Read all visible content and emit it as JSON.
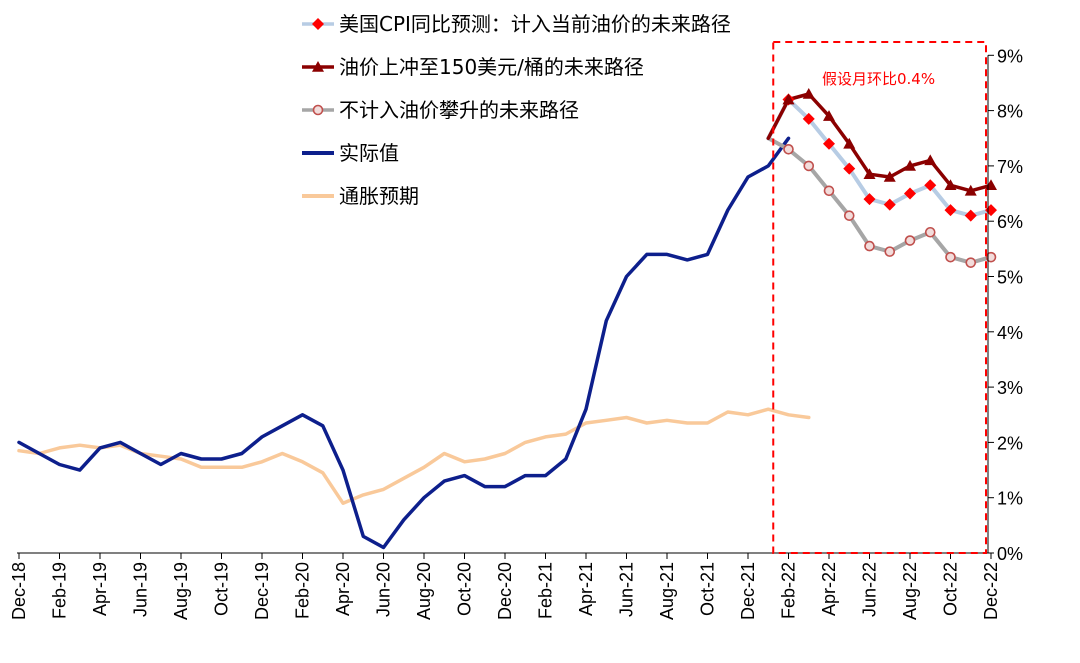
{
  "chart_data": {
    "type": "line",
    "y_axis": {
      "position": "right",
      "ylim": [
        0,
        9
      ],
      "tick_labels": [
        "0%",
        "1%",
        "2%",
        "3%",
        "4%",
        "5%",
        "6%",
        "7%",
        "8%",
        "9%"
      ]
    },
    "x_axis": {
      "months": [
        "Dec-18",
        "Jan-19",
        "Feb-19",
        "Mar-19",
        "Apr-19",
        "May-19",
        "Jun-19",
        "Jul-19",
        "Aug-19",
        "Sep-19",
        "Oct-19",
        "Nov-19",
        "Dec-19",
        "Jan-20",
        "Feb-20",
        "Mar-20",
        "Apr-20",
        "May-20",
        "Jun-20",
        "Jul-20",
        "Aug-20",
        "Sep-20",
        "Oct-20",
        "Nov-20",
        "Dec-20",
        "Jan-21",
        "Feb-21",
        "Mar-21",
        "Apr-21",
        "May-21",
        "Jun-21",
        "Jul-21",
        "Aug-21",
        "Sep-21",
        "Oct-21",
        "Nov-21",
        "Dec-21",
        "Jan-22",
        "Feb-22",
        "Mar-22",
        "Apr-22",
        "May-22",
        "Jun-22",
        "Jul-22",
        "Aug-22",
        "Sep-22",
        "Oct-22",
        "Nov-22",
        "Dec-22"
      ],
      "tick_labels": [
        "Dec-18",
        "Feb-19",
        "Apr-19",
        "Jun-19",
        "Aug-19",
        "Oct-19",
        "Dec-19",
        "Feb-20",
        "Apr-20",
        "Jun-20",
        "Aug-20",
        "Oct-20",
        "Dec-20",
        "Feb-21",
        "Apr-21",
        "Jun-21",
        "Aug-21",
        "Oct-21",
        "Dec-21",
        "Feb-22",
        "Apr-22",
        "Jun-22",
        "Aug-22",
        "Oct-22",
        "Dec-22"
      ]
    },
    "series": [
      {
        "name": "美国CPI同比预测：计入当前油价的未来路径",
        "color": "#b7cce4",
        "marker_color": "#ff0000",
        "marker": "diamond",
        "start_month": "Jan-22",
        "values": [
          7.5,
          8.2,
          7.85,
          7.4,
          6.95,
          6.4,
          6.3,
          6.5,
          6.65,
          6.2,
          6.1,
          6.2
        ]
      },
      {
        "name": "油价上冲至150美元/桶的未来路径",
        "color": "#8b0000",
        "marker": "triangle",
        "start_month": "Jan-22",
        "values": [
          7.5,
          8.2,
          8.3,
          7.9,
          7.4,
          6.85,
          6.8,
          7.0,
          7.1,
          6.65,
          6.55,
          6.65
        ]
      },
      {
        "name": "不计入油价攀升的未来路径",
        "color": "#a6a6a6",
        "marker_color": "#c0504d",
        "marker": "circle",
        "start_month": "Jan-22",
        "values": [
          7.5,
          7.3,
          7.0,
          6.55,
          6.1,
          5.55,
          5.45,
          5.65,
          5.8,
          5.35,
          5.25,
          5.35
        ]
      },
      {
        "name": "实际值",
        "color": "#0d1f8c",
        "marker": "none",
        "start_month": "Dec-18",
        "values": [
          2.0,
          1.8,
          1.6,
          1.5,
          1.9,
          2.0,
          1.8,
          1.6,
          1.8,
          1.7,
          1.7,
          1.8,
          2.1,
          2.3,
          2.5,
          2.3,
          1.5,
          0.3,
          0.1,
          0.6,
          1.0,
          1.3,
          1.4,
          1.2,
          1.2,
          1.4,
          1.4,
          1.7,
          2.6,
          4.2,
          5.0,
          5.4,
          5.4,
          5.3,
          5.4,
          6.2,
          6.8,
          7.0,
          7.5
        ]
      },
      {
        "name": "通胀预期",
        "color": "#f9c99a",
        "marker": "none",
        "start_month": "Dec-18",
        "values": [
          1.85,
          1.8,
          1.9,
          1.95,
          1.9,
          1.95,
          1.8,
          1.75,
          1.7,
          1.55,
          1.55,
          1.55,
          1.65,
          1.8,
          1.65,
          1.45,
          0.9,
          1.05,
          1.15,
          1.35,
          1.55,
          1.8,
          1.65,
          1.7,
          1.8,
          2.0,
          2.1,
          2.15,
          2.35,
          2.4,
          2.45,
          2.35,
          2.4,
          2.35,
          2.35,
          2.55,
          2.5,
          2.6,
          2.5,
          2.45
        ]
      }
    ],
    "annotation": {
      "text": "假设月环比0.4%",
      "color": "#ff0000"
    },
    "legend_position": "top-left",
    "grid": false
  }
}
